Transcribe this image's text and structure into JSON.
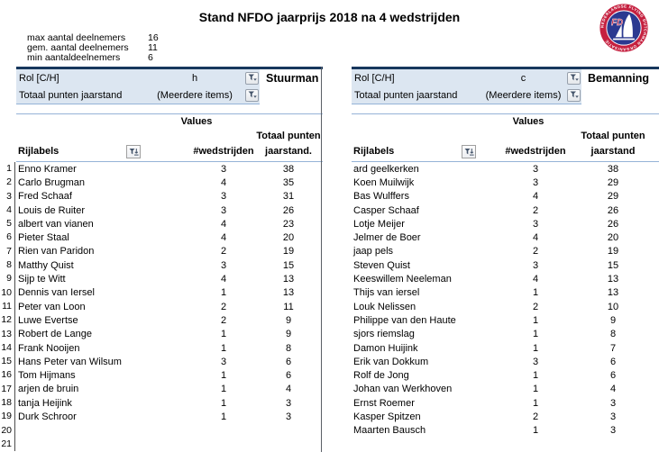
{
  "title": "Stand NFDO jaarprijs 2018 na 4 wedstrijden",
  "stats": [
    {
      "label": "max aantal deelnemers",
      "value": "16"
    },
    {
      "label": "gem. aantal deelnemers",
      "value": "11"
    },
    {
      "label": "min aantaldeelnemers",
      "value": "6"
    }
  ],
  "logo": {
    "abbr": "FD",
    "ring_text": "NEDERLANDSE FLYING DUTCHMAN ORGANISATIE",
    "ring_color": "#C5203F",
    "disc_color": "#2B3990"
  },
  "colors": {
    "filter_bg": "#DCE6F1",
    "navy_border": "#17375D",
    "blue_border": "#95B3D7"
  },
  "row_numbers": [
    "1",
    "2",
    "3",
    "4",
    "5",
    "6",
    "7",
    "8",
    "9",
    "10",
    "11",
    "12",
    "13",
    "14",
    "15",
    "16",
    "17",
    "18",
    "19",
    "20",
    "21"
  ],
  "tables": [
    {
      "role_label": "Stuurman",
      "filters": [
        {
          "label": "Rol [C/H]",
          "value": "h"
        },
        {
          "label": "Totaal punten jaarstand",
          "value": "(Meerdere items)"
        }
      ],
      "values_header": "Values",
      "row_header": "Rijlabels",
      "col_races": "#wedstrijden",
      "col_points_line1": "Totaal punten",
      "col_points_line2": "jaarstand.",
      "rows": [
        [
          "Enno Kramer",
          "3",
          "38"
        ],
        [
          "Carlo Brugman",
          "4",
          "35"
        ],
        [
          "Fred Schaaf",
          "3",
          "31"
        ],
        [
          "Louis de Ruiter",
          "3",
          "26"
        ],
        [
          "albert van vianen",
          "4",
          "23"
        ],
        [
          "Pieter Staal",
          "4",
          "20"
        ],
        [
          "Rien van Paridon",
          "2",
          "19"
        ],
        [
          "Matthy Quist",
          "3",
          "15"
        ],
        [
          "Sijp te Witt",
          "4",
          "13"
        ],
        [
          "Dennis van Iersel",
          "1",
          "13"
        ],
        [
          "Peter van Loon",
          "2",
          "11"
        ],
        [
          "Luwe Evertse",
          "2",
          "9"
        ],
        [
          "Robert de Lange",
          "1",
          "9"
        ],
        [
          "Frank Nooijen",
          "1",
          "8"
        ],
        [
          "Hans Peter van Wilsum",
          "3",
          "6"
        ],
        [
          "Tom Hijmans",
          "1",
          "6"
        ],
        [
          "arjen de bruin",
          "1",
          "4"
        ],
        [
          "tanja Heijink",
          "1",
          "3"
        ],
        [
          "Durk Schroor",
          "1",
          "3"
        ]
      ]
    },
    {
      "role_label": "Bemanning",
      "filters": [
        {
          "label": "Rol [C/H]",
          "value": "c"
        },
        {
          "label": "Totaal punten jaarstand",
          "value": "(Meerdere items)"
        }
      ],
      "values_header": "Values",
      "row_header": "Rijlabels",
      "col_races": "#wedstrijden",
      "col_points_line1": "Totaal punten",
      "col_points_line2": "jaarstand",
      "rows": [
        [
          "ard geelkerken",
          "3",
          "38"
        ],
        [
          "Koen Muilwijk",
          "3",
          "29"
        ],
        [
          "Bas Wulffers",
          "4",
          "29"
        ],
        [
          "Casper Schaaf",
          "2",
          "26"
        ],
        [
          "Lotje Meijer",
          "3",
          "26"
        ],
        [
          "Jelmer de Boer",
          "4",
          "20"
        ],
        [
          "jaap pels",
          "2",
          "19"
        ],
        [
          "Steven Quist",
          "3",
          "15"
        ],
        [
          "Keeswillem Neeleman",
          "4",
          "13"
        ],
        [
          "Thijs van iersel",
          "1",
          "13"
        ],
        [
          "Louk Nelissen",
          "2",
          "10"
        ],
        [
          "Philippe van den Haute",
          "1",
          "9"
        ],
        [
          "sjors riemslag",
          "1",
          "8"
        ],
        [
          "Damon Huijink",
          "1",
          "7"
        ],
        [
          "Erik van Dokkum",
          "3",
          "6"
        ],
        [
          "Rolf de Jong",
          "1",
          "6"
        ],
        [
          "Johan van Werkhoven",
          "1",
          "4"
        ],
        [
          "Ernst Roemer",
          "1",
          "3"
        ],
        [
          "Kasper Spitzen",
          "2",
          "3"
        ],
        [
          "Maarten Bausch",
          "1",
          "3"
        ]
      ]
    }
  ]
}
